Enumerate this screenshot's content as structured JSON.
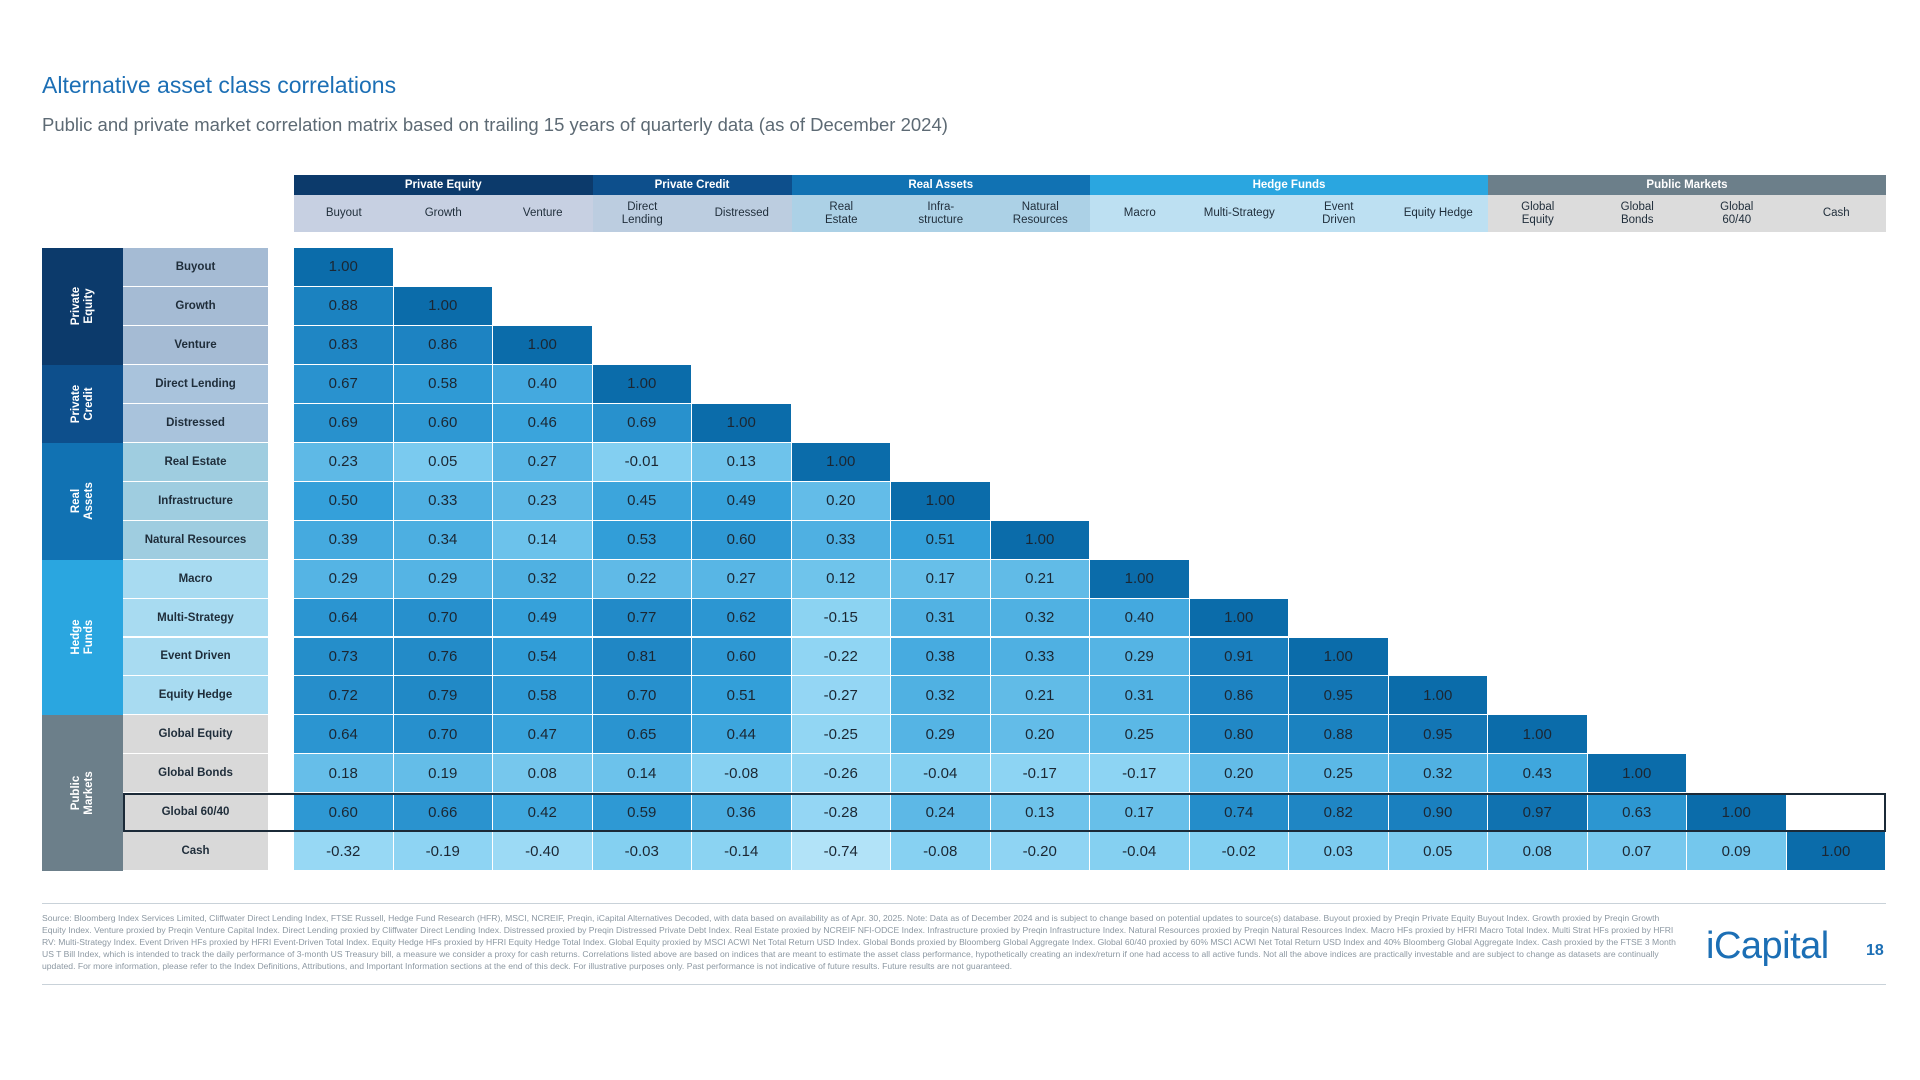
{
  "header": {
    "title": "Alternative asset class correlations",
    "subtitle": "Public and private market correlation matrix based on trailing 15 years of quarterly data (as of December 2024)"
  },
  "table": {
    "groups": [
      {
        "label": "Private Equity",
        "columns": [
          "Buyout",
          "Growth",
          "Venture"
        ],
        "rows": [
          {
            "label": "Buyout",
            "values": [
              "1.00"
            ]
          },
          {
            "label": "Growth",
            "values": [
              "0.88",
              "1.00"
            ]
          },
          {
            "label": "Venture",
            "values": [
              "0.83",
              "0.86",
              "1.00"
            ]
          }
        ]
      },
      {
        "label": "Private Credit",
        "columns": [
          "Direct\nLending",
          "Distressed"
        ],
        "rows": [
          {
            "label": "Direct Lending",
            "values": [
              "0.67",
              "0.58",
              "0.40",
              "1.00"
            ]
          },
          {
            "label": "Distressed",
            "values": [
              "0.69",
              "0.60",
              "0.46",
              "0.69",
              "1.00"
            ]
          }
        ]
      },
      {
        "label": "Real Assets",
        "columns": [
          "Real\nEstate",
          "Infra-\nstructure",
          "Natural\nResources"
        ],
        "rows": [
          {
            "label": "Real Estate",
            "values": [
              "0.23",
              "0.05",
              "0.27",
              "-0.01",
              "0.13",
              "1.00"
            ]
          },
          {
            "label": "Infrastructure",
            "values": [
              "0.50",
              "0.33",
              "0.23",
              "0.45",
              "0.49",
              "0.20",
              "1.00"
            ]
          },
          {
            "label": "Natural Resources",
            "values": [
              "0.39",
              "0.34",
              "0.14",
              "0.53",
              "0.60",
              "0.33",
              "0.51",
              "1.00"
            ]
          }
        ]
      },
      {
        "label": "Hedge Funds",
        "columns": [
          "Macro",
          "Multi-Strategy",
          "Event\nDriven",
          "Equity Hedge"
        ],
        "rows": [
          {
            "label": "Macro",
            "values": [
              "0.29",
              "0.29",
              "0.32",
              "0.22",
              "0.27",
              "0.12",
              "0.17",
              "0.21",
              "1.00"
            ]
          },
          {
            "label": "Multi-Strategy",
            "values": [
              "0.64",
              "0.70",
              "0.49",
              "0.77",
              "0.62",
              "-0.15",
              "0.31",
              "0.32",
              "0.40",
              "1.00"
            ]
          },
          {
            "label": "Event Driven",
            "values": [
              "0.73",
              "0.76",
              "0.54",
              "0.81",
              "0.60",
              "-0.22",
              "0.38",
              "0.33",
              "0.29",
              "0.91",
              "1.00"
            ]
          },
          {
            "label": "Equity Hedge",
            "values": [
              "0.72",
              "0.79",
              "0.58",
              "0.70",
              "0.51",
              "-0.27",
              "0.32",
              "0.21",
              "0.31",
              "0.86",
              "0.95",
              "1.00"
            ]
          }
        ]
      },
      {
        "label": "Public Markets",
        "columns": [
          "Global\nEquity",
          "Global\nBonds",
          "Global\n60/40",
          "Cash"
        ],
        "rows": [
          {
            "label": "Global Equity",
            "values": [
              "0.64",
              "0.70",
              "0.47",
              "0.65",
              "0.44",
              "-0.25",
              "0.29",
              "0.20",
              "0.25",
              "0.80",
              "0.88",
              "0.95",
              "1.00"
            ]
          },
          {
            "label": "Global Bonds",
            "values": [
              "0.18",
              "0.19",
              "0.08",
              "0.14",
              "-0.08",
              "-0.26",
              "-0.04",
              "-0.17",
              "-0.17",
              "0.20",
              "0.25",
              "0.32",
              "0.43",
              "1.00"
            ]
          },
          {
            "label": "Global 60/40",
            "values": [
              "0.60",
              "0.66",
              "0.42",
              "0.59",
              "0.36",
              "-0.28",
              "0.24",
              "0.13",
              "0.17",
              "0.74",
              "0.82",
              "0.90",
              "0.97",
              "0.63",
              "1.00"
            ]
          },
          {
            "label": "Cash",
            "values": [
              "-0.32",
              "-0.19",
              "-0.40",
              "-0.03",
              "-0.14",
              "-0.74",
              "-0.08",
              "-0.20",
              "-0.04",
              "-0.02",
              "0.03",
              "0.05",
              "0.08",
              "0.07",
              "0.09",
              "1.00"
            ]
          }
        ]
      }
    ]
  },
  "footer": {
    "source": "Source: Bloomberg Index Services Limited, Cliffwater Direct Lending Index, FTSE Russell, Hedge Fund Research (HFR), MSCI, NCREIF, Preqin, iCapital Alternatives Decoded, with data based on availability as of Apr. 30, 2025. Note: Data as of December 2024 and is subject to change based on potential updates to source(s) database. Buyout proxied by Preqin Private Equity Buyout Index. Growth proxied by Preqin Growth Equity Index. Venture proxied by Preqin Venture Capital Index. Direct Lending proxied by Cliffwater Direct Lending Index. Distressed proxied by Preqin Distressed Private Debt Index. Real Estate proxied by NCREIF NFI-ODCE Index. Infrastructure proxied by Preqin Infrastructure Index. Natural Resources proxied by Preqin Natural Resources Index. Macro HFs proxied by HFRI Macro Total Index. Multi Strat HFs proxied by HFRI RV: Multi-Strategy Index. Event Driven HFs proxied by HFRI Event-Driven Total Index. Equity Hedge HFs proxied by HFRI Equity Hedge Total Index. Global Equity proxied by MSCI ACWI Net Total Return USD Index. Global Bonds proxied by Bloomberg Global Aggregate Index. Global 60/40 proxied by 60% MSCI ACWI Net Total Return USD Index and 40% Bloomberg Global Aggregate Index. Cash proxied by the FTSE 3 Month US T Bill Index, which is intended to track the daily performance of 3-month US Treasury bill, a measure we consider a proxy for cash returns. Correlations listed above are based on indices that are meant to estimate the asset class performance, hypothetically creating an index/return if one had access to all active funds. Not all the above indices are practically investable and are subject to change as datasets are continually updated. For more information, please refer to the Index Definitions, Attributions, and Important Information sections at the end of this deck. For illustrative purposes only. Past performance is not indicative of future results. Future results are not guaranteed.",
    "logo": "iCapital",
    "page": "18"
  }
}
